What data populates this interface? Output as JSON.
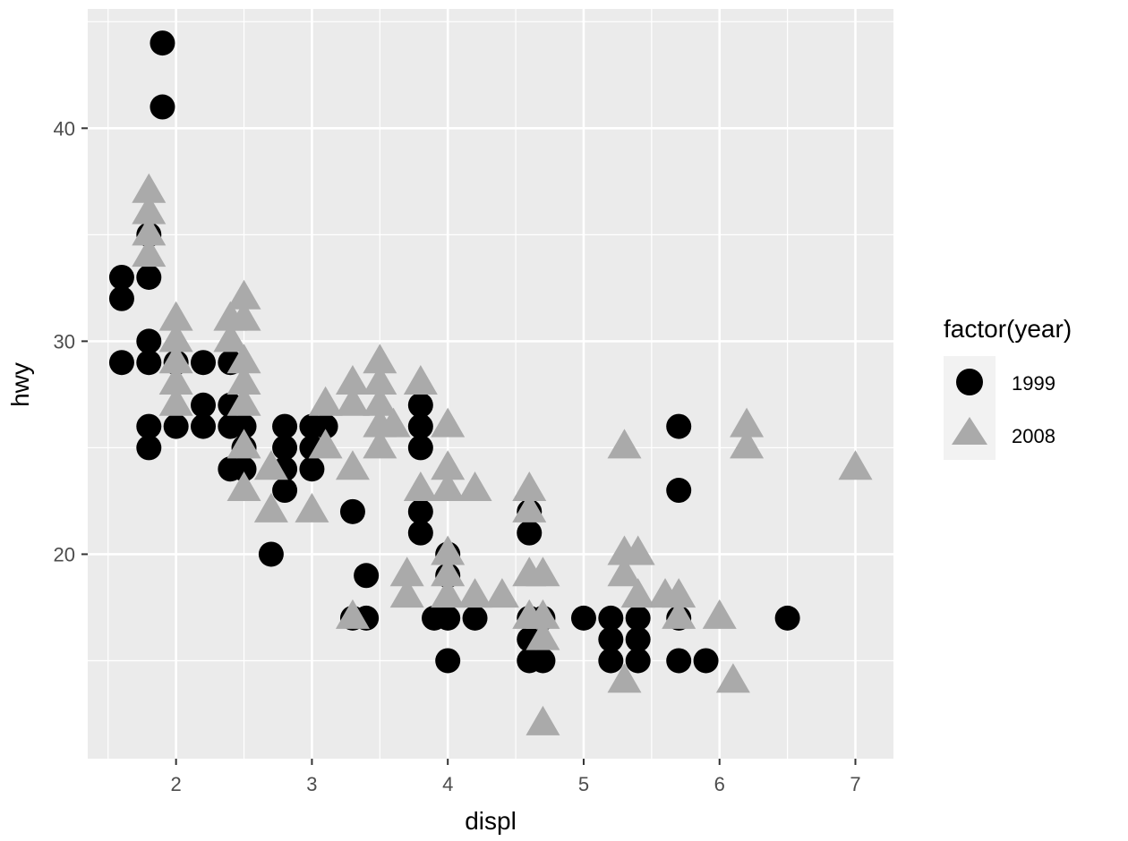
{
  "chart_data": {
    "type": "scatter",
    "title": "",
    "xlabel": "displ",
    "ylabel": "hwy",
    "xlim": [
      1.35,
      7.28
    ],
    "ylim": [
      10.4,
      45.6
    ],
    "x_ticks": [
      2,
      3,
      4,
      5,
      6,
      7
    ],
    "y_ticks": [
      20,
      30,
      40
    ],
    "x_tick_labels": [
      "2",
      "3",
      "4",
      "5",
      "6",
      "7"
    ],
    "y_tick_labels": [
      "20",
      "30",
      "40"
    ],
    "grid": true,
    "legend": {
      "title": "factor(year)",
      "placement": "right"
    },
    "series": [
      {
        "name": "1999",
        "shape": "circle",
        "color": "#000000",
        "points": [
          [
            1.6,
            33
          ],
          [
            1.6,
            32
          ],
          [
            1.6,
            29
          ],
          [
            1.8,
            35
          ],
          [
            1.8,
            33
          ],
          [
            1.8,
            30
          ],
          [
            1.8,
            29
          ],
          [
            1.8,
            26
          ],
          [
            1.8,
            25
          ],
          [
            1.9,
            44
          ],
          [
            1.9,
            41
          ],
          [
            2.0,
            29
          ],
          [
            2.0,
            26
          ],
          [
            2.2,
            29
          ],
          [
            2.2,
            27
          ],
          [
            2.2,
            26
          ],
          [
            2.4,
            29
          ],
          [
            2.4,
            27
          ],
          [
            2.4,
            26
          ],
          [
            2.4,
            24
          ],
          [
            2.5,
            26
          ],
          [
            2.5,
            25
          ],
          [
            2.5,
            24
          ],
          [
            2.7,
            20
          ],
          [
            2.8,
            26
          ],
          [
            2.8,
            25
          ],
          [
            2.8,
            24
          ],
          [
            2.8,
            23
          ],
          [
            3.0,
            26
          ],
          [
            3.0,
            25
          ],
          [
            3.0,
            24
          ],
          [
            3.1,
            26
          ],
          [
            3.3,
            22
          ],
          [
            3.3,
            17
          ],
          [
            3.4,
            19
          ],
          [
            3.4,
            17
          ],
          [
            3.8,
            27
          ],
          [
            3.8,
            26
          ],
          [
            3.8,
            25
          ],
          [
            3.8,
            22
          ],
          [
            3.8,
            21
          ],
          [
            3.9,
            17
          ],
          [
            4.0,
            20
          ],
          [
            4.0,
            19
          ],
          [
            4.0,
            17
          ],
          [
            4.0,
            15
          ],
          [
            4.2,
            17
          ],
          [
            4.6,
            22
          ],
          [
            4.6,
            21
          ],
          [
            4.6,
            17
          ],
          [
            4.6,
            16
          ],
          [
            4.6,
            15
          ],
          [
            4.7,
            17
          ],
          [
            4.7,
            15
          ],
          [
            5.0,
            17
          ],
          [
            5.2,
            17
          ],
          [
            5.2,
            16
          ],
          [
            5.2,
            15
          ],
          [
            5.4,
            17
          ],
          [
            5.4,
            16
          ],
          [
            5.4,
            15
          ],
          [
            5.7,
            26
          ],
          [
            5.7,
            23
          ],
          [
            5.7,
            17
          ],
          [
            5.7,
            15
          ],
          [
            5.9,
            15
          ],
          [
            6.5,
            17
          ]
        ]
      },
      {
        "name": "2008",
        "shape": "triangle",
        "color": "#aaaaaa",
        "points": [
          [
            1.8,
            37
          ],
          [
            1.8,
            36
          ],
          [
            1.8,
            35
          ],
          [
            1.8,
            34
          ],
          [
            2.0,
            31
          ],
          [
            2.0,
            30
          ],
          [
            2.0,
            29
          ],
          [
            2.0,
            28
          ],
          [
            2.0,
            27
          ],
          [
            2.4,
            31
          ],
          [
            2.4,
            30
          ],
          [
            2.5,
            32
          ],
          [
            2.5,
            31
          ],
          [
            2.5,
            29
          ],
          [
            2.5,
            28
          ],
          [
            2.5,
            27
          ],
          [
            2.5,
            25
          ],
          [
            2.5,
            23
          ],
          [
            2.7,
            24
          ],
          [
            2.7,
            22
          ],
          [
            3.0,
            22
          ],
          [
            3.1,
            27
          ],
          [
            3.1,
            25
          ],
          [
            3.3,
            28
          ],
          [
            3.3,
            27
          ],
          [
            3.3,
            24
          ],
          [
            3.3,
            17
          ],
          [
            3.5,
            29
          ],
          [
            3.5,
            28
          ],
          [
            3.5,
            27
          ],
          [
            3.5,
            26
          ],
          [
            3.5,
            25
          ],
          [
            3.6,
            26
          ],
          [
            3.7,
            19
          ],
          [
            3.7,
            18
          ],
          [
            3.8,
            28
          ],
          [
            3.8,
            23
          ],
          [
            4.0,
            26
          ],
          [
            4.0,
            24
          ],
          [
            4.0,
            23
          ],
          [
            4.0,
            20
          ],
          [
            4.0,
            19
          ],
          [
            4.0,
            18
          ],
          [
            4.2,
            23
          ],
          [
            4.2,
            18
          ],
          [
            4.4,
            18
          ],
          [
            4.6,
            23
          ],
          [
            4.6,
            22
          ],
          [
            4.6,
            19
          ],
          [
            4.6,
            17
          ],
          [
            4.7,
            19
          ],
          [
            4.7,
            17
          ],
          [
            4.7,
            16
          ],
          [
            4.7,
            12
          ],
          [
            5.3,
            25
          ],
          [
            5.3,
            20
          ],
          [
            5.3,
            19
          ],
          [
            5.3,
            14
          ],
          [
            5.4,
            20
          ],
          [
            5.4,
            18
          ],
          [
            5.6,
            18
          ],
          [
            5.7,
            18
          ],
          [
            5.7,
            17
          ],
          [
            6.0,
            17
          ],
          [
            6.1,
            14
          ],
          [
            6.2,
            26
          ],
          [
            6.2,
            25
          ],
          [
            7.0,
            24
          ]
        ]
      }
    ]
  }
}
